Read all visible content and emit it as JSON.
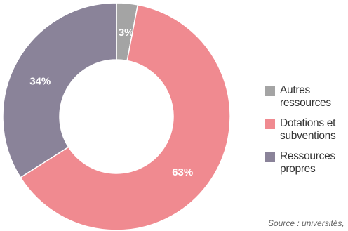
{
  "chart_data": {
    "type": "pie",
    "donut": true,
    "slices": [
      {
        "label": "Autres ressources",
        "value": 3,
        "display": "3%",
        "color": "#a4a4a4"
      },
      {
        "label": "Dotations et subventions",
        "value": 63,
        "display": "63%",
        "color": "#f08a90"
      },
      {
        "label": "Ressources propres",
        "value": 34,
        "display": "34%",
        "color": "#8a8399"
      }
    ],
    "legend_placement": "right"
  },
  "legend": {
    "items": [
      {
        "label_line1": "Autres",
        "label_line2": "ressources",
        "color": "#a4a4a4"
      },
      {
        "label_line1": "Dotations et",
        "label_line2": "subventions",
        "color": "#f08a90"
      },
      {
        "label_line1": "Ressources",
        "label_line2": "propres",
        "color": "#8a8399"
      }
    ]
  },
  "source": "Source : universités,"
}
